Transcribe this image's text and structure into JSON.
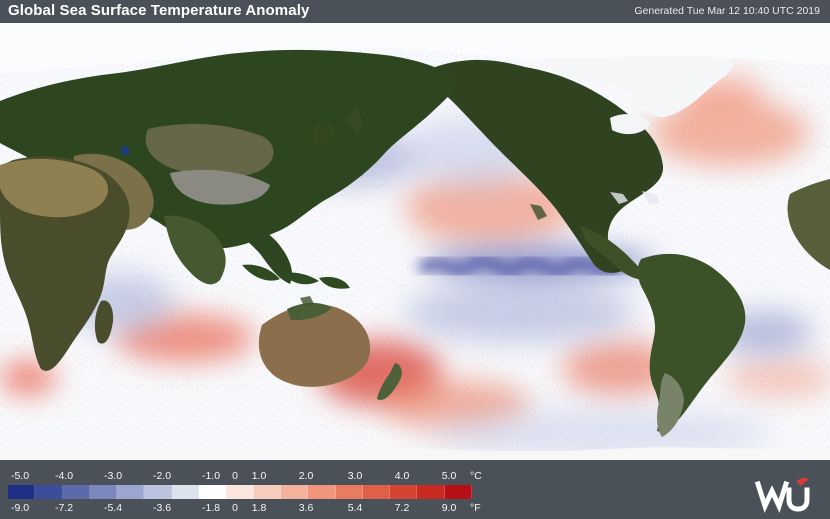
{
  "header": {
    "title": "Global Sea Surface Temperature Anomaly",
    "generated": "Generated Tue Mar 12 10:40 UTC 2019"
  },
  "legend": {
    "celsius_labels": [
      "-5.0",
      "-4.0",
      "-3.0",
      "-2.0",
      "-1.0",
      "0",
      "1.0",
      "2.0",
      "3.0",
      "4.0",
      "5.0"
    ],
    "celsius_unit": "°C",
    "fahrenheit_labels": [
      "-9.0",
      "-7.2",
      "-5.4",
      "-3.6",
      "-1.8",
      "0",
      "1.8",
      "3.6",
      "5.4",
      "7.2",
      "9.0"
    ],
    "fahrenheit_unit": "°F",
    "colors": [
      "#1f2f86",
      "#3d4d99",
      "#5c6aaa",
      "#7c88bd",
      "#9ba5cf",
      "#bcc3df",
      "#dde2ef",
      "#ffffff",
      "#fde6dd",
      "#f9cdbd",
      "#f4b29c",
      "#ef967d",
      "#e97b61",
      "#df5f48",
      "#d54433",
      "#c82a22",
      "#b70f16"
    ]
  },
  "logo": {
    "text": "wu"
  }
}
